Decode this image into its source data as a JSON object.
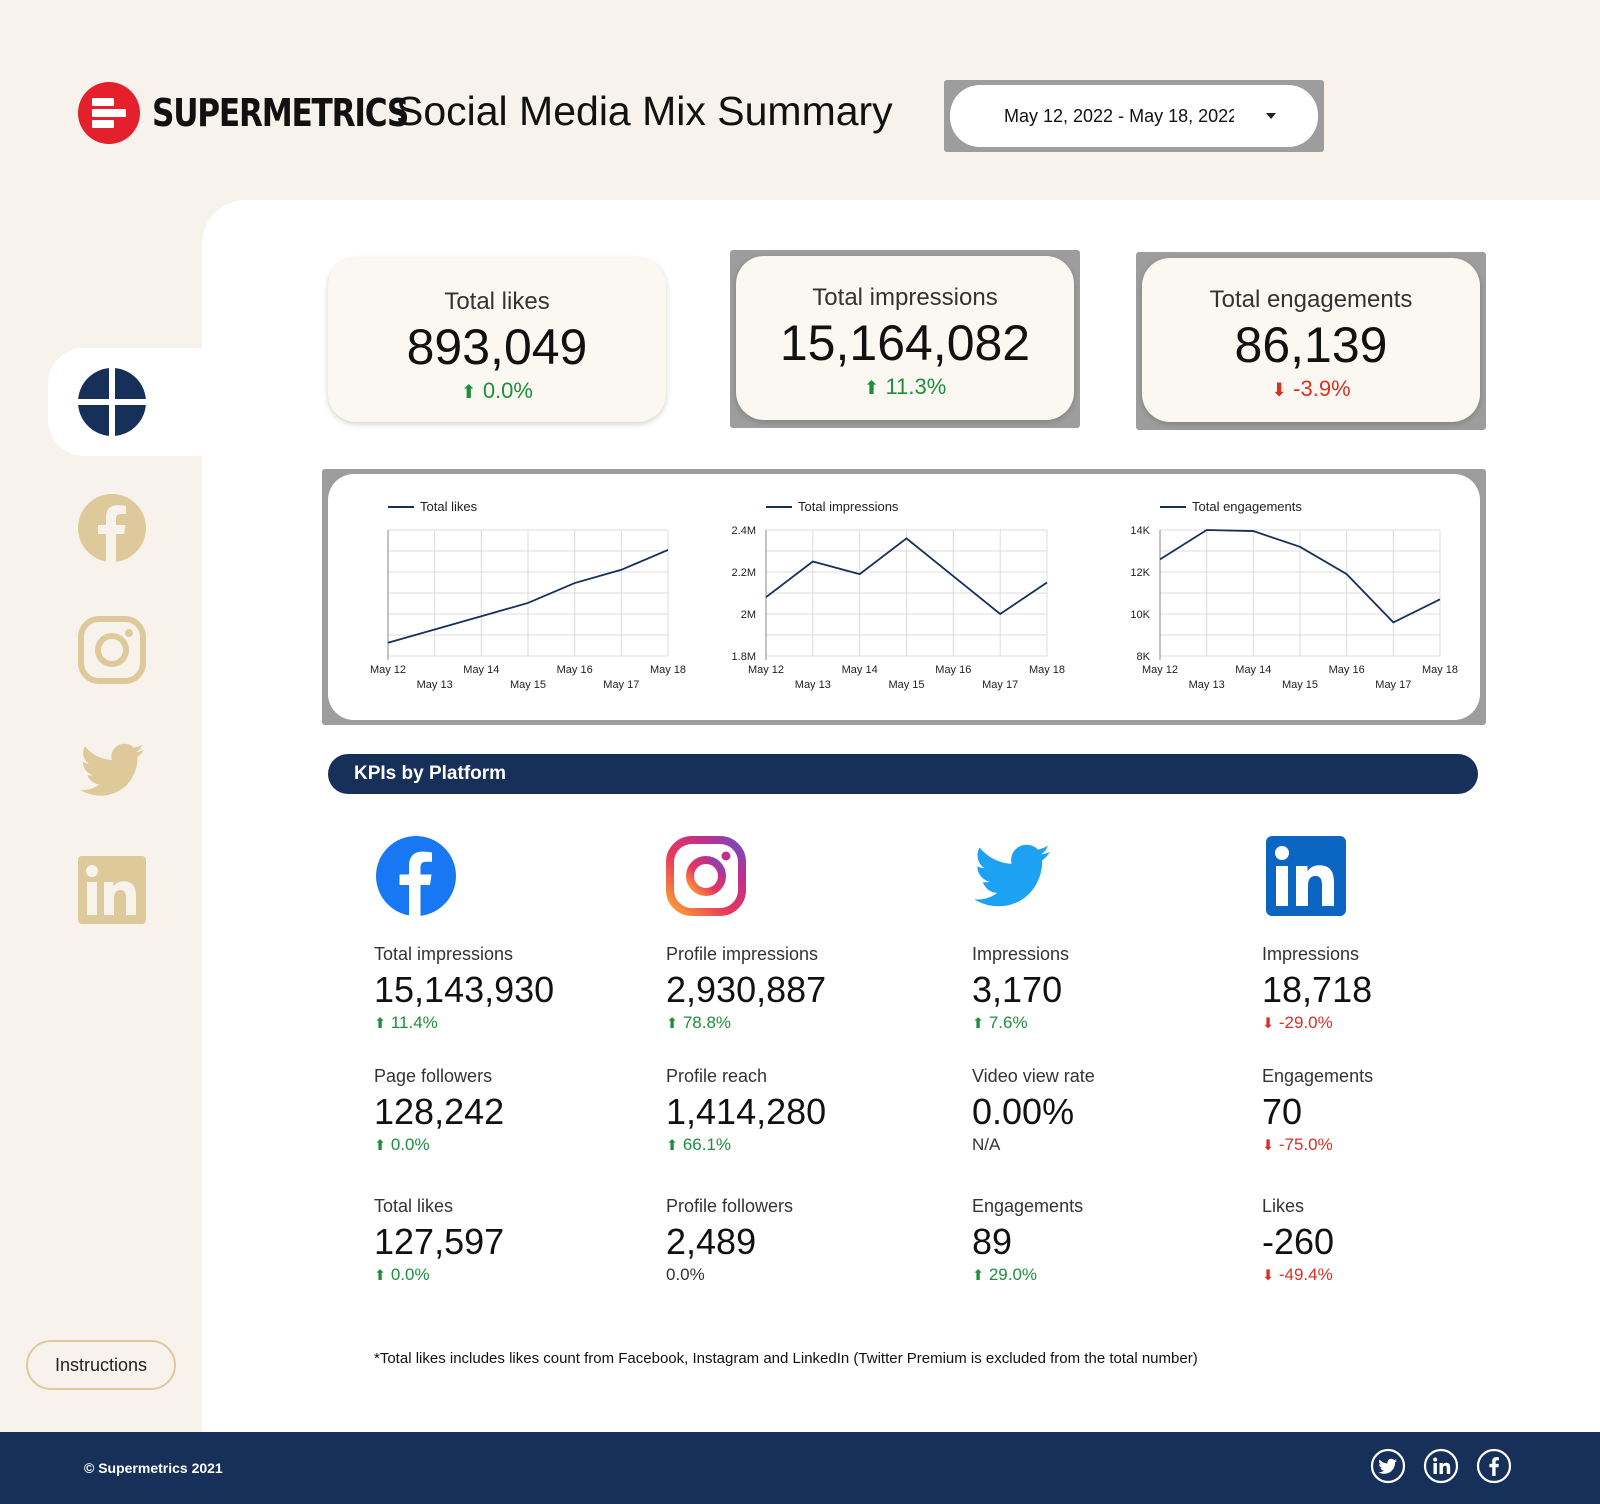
{
  "header": {
    "brand": "SUPERMETRICS",
    "title": "Social Media Mix Summary",
    "date_range": "May 12, 2022 - May 18, 2022"
  },
  "sidebar": {
    "items": [
      {
        "name": "overview",
        "icon": "grid-circle-icon"
      },
      {
        "name": "facebook",
        "icon": "facebook-icon"
      },
      {
        "name": "instagram",
        "icon": "instagram-icon"
      },
      {
        "name": "twitter",
        "icon": "twitter-icon"
      },
      {
        "name": "linkedin",
        "icon": "linkedin-icon"
      }
    ],
    "instructions_label": "Instructions"
  },
  "cards": [
    {
      "label": "Total likes",
      "value": "893,049",
      "delta": "0.0%",
      "trend": "up"
    },
    {
      "label": "Total impressions",
      "value": "15,164,082",
      "delta": "11.3%",
      "trend": "up"
    },
    {
      "label": "Total engagements",
      "value": "86,139",
      "delta": "-3.9%",
      "trend": "down"
    }
  ],
  "chart_data": [
    {
      "type": "line",
      "series": [
        {
          "name": "Total likes",
          "values": [
            885000,
            887000,
            889000,
            891000,
            894000,
            896000,
            899000
          ]
        }
      ],
      "x": [
        "May 12",
        "May 13",
        "May 14",
        "May 15",
        "May 16",
        "May 17",
        "May 18"
      ],
      "yticks": [],
      "ylim": [
        883000,
        902000
      ],
      "grid": true,
      "legend": "top-left",
      "color": "#17305a"
    },
    {
      "type": "line",
      "series": [
        {
          "name": "Total impressions",
          "values": [
            2080000,
            2250000,
            2190000,
            2360000,
            2180000,
            2000000,
            2150000
          ]
        }
      ],
      "x": [
        "May 12",
        "May 13",
        "May 14",
        "May 15",
        "May 16",
        "May 17",
        "May 18"
      ],
      "yticks": [
        "1.8M",
        "2M",
        "2.2M",
        "2.4M"
      ],
      "ytick_values": [
        1800000,
        2000000,
        2200000,
        2400000
      ],
      "ylim": [
        1800000,
        2400000
      ],
      "grid": true,
      "legend": "top-left",
      "color": "#17305a"
    },
    {
      "type": "line",
      "series": [
        {
          "name": "Total engagements",
          "values": [
            12600,
            14000,
            13950,
            13200,
            11900,
            9600,
            10700
          ]
        }
      ],
      "x": [
        "May 12",
        "May 13",
        "May 14",
        "May 15",
        "May 16",
        "May 17",
        "May 18"
      ],
      "yticks": [
        "8K",
        "10K",
        "12K",
        "14K"
      ],
      "ytick_values": [
        8000,
        10000,
        12000,
        14000
      ],
      "ylim": [
        8000,
        14000
      ],
      "grid": true,
      "legend": "top-left",
      "color": "#17305a"
    }
  ],
  "kpi_section": {
    "title": "KPIs by Platform",
    "platforms": [
      {
        "name": "facebook",
        "icon": "facebook-icon",
        "metrics": [
          {
            "label": "Total impressions",
            "value": "15,143,930",
            "delta": "11.4%",
            "trend": "up"
          },
          {
            "label": "Page followers",
            "value": "128,242",
            "delta": "0.0%",
            "trend": "up"
          },
          {
            "label": "Total likes",
            "value": "127,597",
            "delta": "0.0%",
            "trend": "up"
          }
        ]
      },
      {
        "name": "instagram",
        "icon": "instagram-icon",
        "metrics": [
          {
            "label": "Profile impressions",
            "value": "2,930,887",
            "delta": "78.8%",
            "trend": "up"
          },
          {
            "label": "Profile reach",
            "value": "1,414,280",
            "delta": "66.1%",
            "trend": "up"
          },
          {
            "label": "Profile followers",
            "value": "2,489",
            "delta": "0.0%",
            "trend": "neutral"
          }
        ]
      },
      {
        "name": "twitter",
        "icon": "twitter-icon",
        "metrics": [
          {
            "label": "Impressions",
            "value": "3,170",
            "delta": "7.6%",
            "trend": "up"
          },
          {
            "label": "Video view rate",
            "value": "0.00%",
            "delta": "N/A",
            "trend": "neutral"
          },
          {
            "label": "Engagements",
            "value": "89",
            "delta": "29.0%",
            "trend": "up"
          }
        ]
      },
      {
        "name": "linkedin",
        "icon": "linkedin-icon",
        "metrics": [
          {
            "label": "Impressions",
            "value": "18,718",
            "delta": "-29.0%",
            "trend": "down"
          },
          {
            "label": "Engagements",
            "value": "70",
            "delta": "-75.0%",
            "trend": "down"
          },
          {
            "label": "Likes",
            "value": "-260",
            "delta": "-49.4%",
            "trend": "down"
          }
        ]
      }
    ]
  },
  "footnote": "*Total likes includes likes count from Facebook, Instagram and LinkedIn (Twitter Premium is excluded from the total number)",
  "footer": {
    "copyright": "© Supermetrics 2021",
    "icons": [
      "twitter-icon",
      "linkedin-icon",
      "facebook-icon"
    ]
  },
  "colors": {
    "background": "#f7f3ec",
    "navy": "#17305a",
    "brand_red": "#e3202b",
    "sidebar_icon": "#ddc99a",
    "positive": "#1e8e3e",
    "negative": "#d93025"
  }
}
